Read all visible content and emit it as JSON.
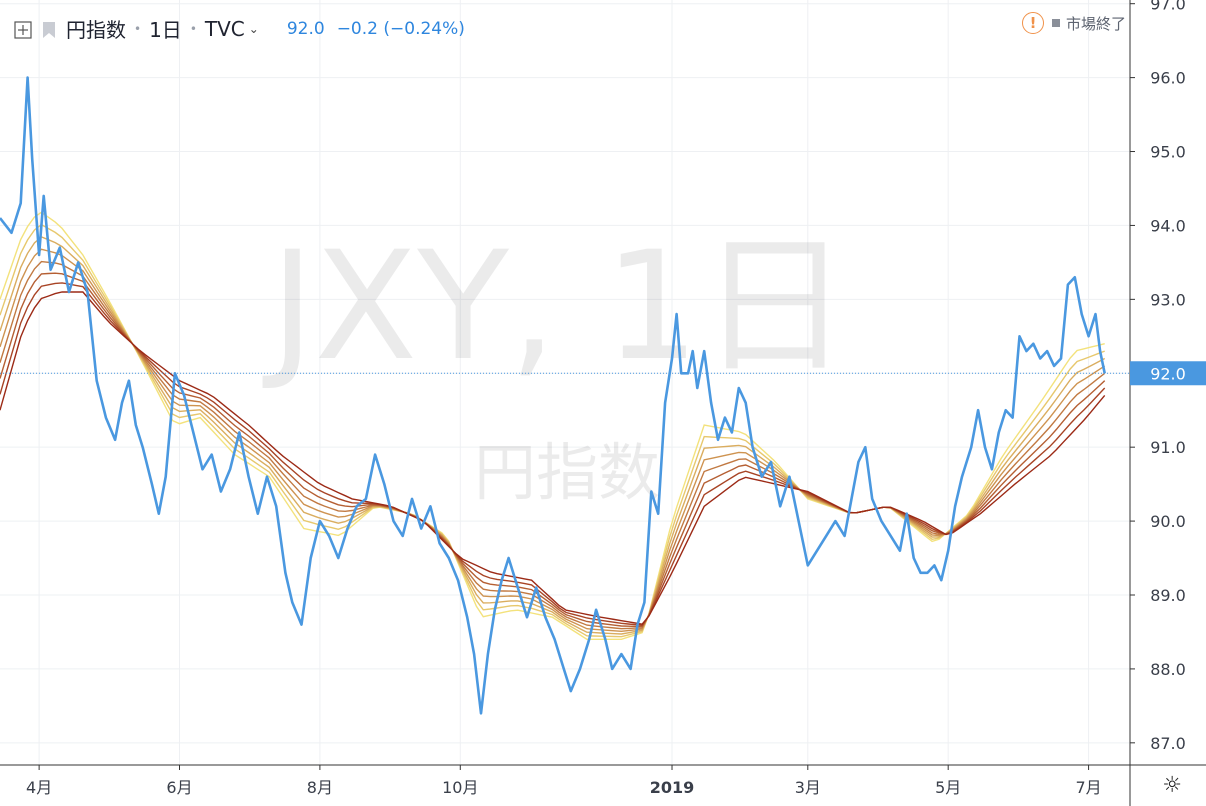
{
  "header": {
    "name": "円指数",
    "interval": "1日",
    "source": "TVC",
    "price": "92.0",
    "change": "−0.2 (−0.24%)"
  },
  "status": {
    "text": "市場終了"
  },
  "watermark": {
    "main": "JXY, 1日",
    "sub": "円指数"
  },
  "current_price_label": "92.0",
  "icons": {
    "add": "plus-square-icon",
    "flag": "flag-icon",
    "market": "warning-icon",
    "settings": "sun-icon"
  },
  "colors": {
    "price_line": "#4a98e0",
    "ribbon_fast": "#f3e27c",
    "ribbon_slow": "#9c2a16",
    "current_line": "#4a98e0"
  },
  "chart_data": {
    "type": "line",
    "title": "",
    "xlabel": "",
    "ylabel": "",
    "x_start": "2018-03-15",
    "x_end": "2019-07-19",
    "ylim": [
      86.7,
      97.05
    ],
    "y_ticks": [
      "87.0",
      "88.0",
      "89.0",
      "90.0",
      "91.0",
      "92.0",
      "93.0",
      "94.0",
      "95.0",
      "96.0",
      "97.0"
    ],
    "x_ticks": [
      {
        "label": "4月",
        "date": "2018-04-01"
      },
      {
        "label": "6月",
        "date": "2018-06-01"
      },
      {
        "label": "8月",
        "date": "2018-08-01"
      },
      {
        "label": "10月",
        "date": "2018-10-01"
      },
      {
        "label": "2019",
        "date": "2019-01-01"
      },
      {
        "label": "3月",
        "date": "2019-03-01"
      },
      {
        "label": "5月",
        "date": "2019-05-01"
      },
      {
        "label": "7月",
        "date": "2019-07-01"
      }
    ],
    "grid": true,
    "current_value": 92.0,
    "series": [
      {
        "kind": "price",
        "points": [
          [
            "2018-03-15",
            94.1
          ],
          [
            "2018-03-20",
            93.9
          ],
          [
            "2018-03-24",
            94.3
          ],
          [
            "2018-03-27",
            96.0
          ],
          [
            "2018-03-29",
            94.9
          ],
          [
            "2018-04-01",
            93.6
          ],
          [
            "2018-04-03",
            94.4
          ],
          [
            "2018-04-06",
            93.4
          ],
          [
            "2018-04-10",
            93.7
          ],
          [
            "2018-04-14",
            93.1
          ],
          [
            "2018-04-18",
            93.5
          ],
          [
            "2018-04-22",
            93.1
          ],
          [
            "2018-04-26",
            91.9
          ],
          [
            "2018-04-30",
            91.4
          ],
          [
            "2018-05-04",
            91.1
          ],
          [
            "2018-05-07",
            91.6
          ],
          [
            "2018-05-10",
            91.9
          ],
          [
            "2018-05-13",
            91.3
          ],
          [
            "2018-05-16",
            91.0
          ],
          [
            "2018-05-20",
            90.5
          ],
          [
            "2018-05-23",
            90.1
          ],
          [
            "2018-05-26",
            90.6
          ],
          [
            "2018-05-30",
            92.0
          ],
          [
            "2018-06-03",
            91.7
          ],
          [
            "2018-06-07",
            91.2
          ],
          [
            "2018-06-11",
            90.7
          ],
          [
            "2018-06-15",
            90.9
          ],
          [
            "2018-06-19",
            90.4
          ],
          [
            "2018-06-23",
            90.7
          ],
          [
            "2018-06-27",
            91.2
          ],
          [
            "2018-07-01",
            90.6
          ],
          [
            "2018-07-05",
            90.1
          ],
          [
            "2018-07-09",
            90.6
          ],
          [
            "2018-07-13",
            90.2
          ],
          [
            "2018-07-17",
            89.3
          ],
          [
            "2018-07-20",
            88.9
          ],
          [
            "2018-07-24",
            88.6
          ],
          [
            "2018-07-28",
            89.5
          ],
          [
            "2018-08-01",
            90.0
          ],
          [
            "2018-08-05",
            89.8
          ],
          [
            "2018-08-09",
            89.5
          ],
          [
            "2018-08-13",
            89.9
          ],
          [
            "2018-08-17",
            90.2
          ],
          [
            "2018-08-21",
            90.3
          ],
          [
            "2018-08-25",
            90.9
          ],
          [
            "2018-08-29",
            90.5
          ],
          [
            "2018-09-02",
            90.0
          ],
          [
            "2018-09-06",
            89.8
          ],
          [
            "2018-09-10",
            90.3
          ],
          [
            "2018-09-14",
            89.9
          ],
          [
            "2018-09-18",
            90.2
          ],
          [
            "2018-09-22",
            89.7
          ],
          [
            "2018-09-26",
            89.5
          ],
          [
            "2018-09-30",
            89.2
          ],
          [
            "2018-10-04",
            88.7
          ],
          [
            "2018-10-07",
            88.2
          ],
          [
            "2018-10-10",
            87.4
          ],
          [
            "2018-10-13",
            88.2
          ],
          [
            "2018-10-16",
            88.8
          ],
          [
            "2018-10-19",
            89.2
          ],
          [
            "2018-10-22",
            89.5
          ],
          [
            "2018-10-26",
            89.1
          ],
          [
            "2018-10-30",
            88.7
          ],
          [
            "2018-11-03",
            89.1
          ],
          [
            "2018-11-07",
            88.7
          ],
          [
            "2018-11-11",
            88.4
          ],
          [
            "2018-11-15",
            88.0
          ],
          [
            "2018-11-18",
            87.7
          ],
          [
            "2018-11-22",
            88.0
          ],
          [
            "2018-11-26",
            88.4
          ],
          [
            "2018-11-29",
            88.8
          ],
          [
            "2018-12-03",
            88.4
          ],
          [
            "2018-12-06",
            88.0
          ],
          [
            "2018-12-10",
            88.2
          ],
          [
            "2018-12-14",
            88.0
          ],
          [
            "2018-12-17",
            88.6
          ],
          [
            "2018-12-20",
            88.9
          ],
          [
            "2018-12-23",
            90.4
          ],
          [
            "2018-12-26",
            90.1
          ],
          [
            "2018-12-29",
            91.6
          ],
          [
            "2019-01-01",
            92.2
          ],
          [
            "2019-01-03",
            92.8
          ],
          [
            "2019-01-05",
            92.0
          ],
          [
            "2019-01-08",
            92.0
          ],
          [
            "2019-01-10",
            92.3
          ],
          [
            "2019-01-12",
            91.8
          ],
          [
            "2019-01-15",
            92.3
          ],
          [
            "2019-01-18",
            91.6
          ],
          [
            "2019-01-21",
            91.1
          ],
          [
            "2019-01-24",
            91.4
          ],
          [
            "2019-01-27",
            91.2
          ],
          [
            "2019-01-30",
            91.8
          ],
          [
            "2019-02-02",
            91.6
          ],
          [
            "2019-02-05",
            91.0
          ],
          [
            "2019-02-09",
            90.6
          ],
          [
            "2019-02-13",
            90.8
          ],
          [
            "2019-02-17",
            90.2
          ],
          [
            "2019-02-21",
            90.6
          ],
          [
            "2019-02-25",
            90.0
          ],
          [
            "2019-03-01",
            89.4
          ],
          [
            "2019-03-05",
            89.6
          ],
          [
            "2019-03-09",
            89.8
          ],
          [
            "2019-03-13",
            90.0
          ],
          [
            "2019-03-17",
            89.8
          ],
          [
            "2019-03-20",
            90.3
          ],
          [
            "2019-03-23",
            90.8
          ],
          [
            "2019-03-26",
            91.0
          ],
          [
            "2019-03-29",
            90.3
          ],
          [
            "2019-04-02",
            90.0
          ],
          [
            "2019-04-06",
            89.8
          ],
          [
            "2019-04-10",
            89.6
          ],
          [
            "2019-04-13",
            90.1
          ],
          [
            "2019-04-16",
            89.5
          ],
          [
            "2019-04-19",
            89.3
          ],
          [
            "2019-04-22",
            89.3
          ],
          [
            "2019-04-25",
            89.4
          ],
          [
            "2019-04-28",
            89.2
          ],
          [
            "2019-05-01",
            89.6
          ],
          [
            "2019-05-04",
            90.2
          ],
          [
            "2019-05-07",
            90.6
          ],
          [
            "2019-05-11",
            91.0
          ],
          [
            "2019-05-14",
            91.5
          ],
          [
            "2019-05-17",
            91.0
          ],
          [
            "2019-05-20",
            90.7
          ],
          [
            "2019-05-23",
            91.2
          ],
          [
            "2019-05-26",
            91.5
          ],
          [
            "2019-05-29",
            91.4
          ],
          [
            "2019-06-01",
            92.5
          ],
          [
            "2019-06-04",
            92.3
          ],
          [
            "2019-06-07",
            92.4
          ],
          [
            "2019-06-10",
            92.2
          ],
          [
            "2019-06-13",
            92.3
          ],
          [
            "2019-06-16",
            92.1
          ],
          [
            "2019-06-19",
            92.2
          ],
          [
            "2019-06-22",
            93.2
          ],
          [
            "2019-06-25",
            93.3
          ],
          [
            "2019-06-28",
            92.8
          ],
          [
            "2019-07-01",
            92.5
          ],
          [
            "2019-07-04",
            92.8
          ],
          [
            "2019-07-06",
            92.3
          ],
          [
            "2019-07-08",
            92.0
          ]
        ]
      },
      {
        "kind": "ribbon-fast",
        "points": [
          [
            "2018-03-15",
            93.0
          ],
          [
            "2018-03-25",
            93.9
          ],
          [
            "2018-04-01",
            94.2
          ],
          [
            "2018-04-10",
            94.0
          ],
          [
            "2018-04-20",
            93.6
          ],
          [
            "2018-05-01",
            93.0
          ],
          [
            "2018-05-15",
            92.2
          ],
          [
            "2018-05-30",
            91.3
          ],
          [
            "2018-06-10",
            91.4
          ],
          [
            "2018-06-25",
            90.9
          ],
          [
            "2018-07-10",
            90.6
          ],
          [
            "2018-07-25",
            89.9
          ],
          [
            "2018-08-10",
            89.8
          ],
          [
            "2018-08-25",
            90.2
          ],
          [
            "2018-09-10",
            90.1
          ],
          [
            "2018-09-25",
            89.8
          ],
          [
            "2018-10-10",
            88.7
          ],
          [
            "2018-10-25",
            88.8
          ],
          [
            "2018-11-10",
            88.7
          ],
          [
            "2018-11-25",
            88.4
          ],
          [
            "2018-12-10",
            88.4
          ],
          [
            "2018-12-20",
            88.5
          ],
          [
            "2019-01-01",
            90.0
          ],
          [
            "2019-01-15",
            91.3
          ],
          [
            "2019-02-01",
            91.2
          ],
          [
            "2019-02-15",
            90.8
          ],
          [
            "2019-03-01",
            90.3
          ],
          [
            "2019-03-20",
            90.1
          ],
          [
            "2019-04-05",
            90.2
          ],
          [
            "2019-04-25",
            89.7
          ],
          [
            "2019-05-10",
            90.1
          ],
          [
            "2019-05-25",
            90.9
          ],
          [
            "2019-06-10",
            91.6
          ],
          [
            "2019-06-25",
            92.3
          ],
          [
            "2019-07-08",
            92.4
          ]
        ]
      },
      {
        "kind": "ribbon-slow",
        "points": [
          [
            "2018-03-15",
            91.5
          ],
          [
            "2018-03-25",
            92.6
          ],
          [
            "2018-04-01",
            93.0
          ],
          [
            "2018-04-10",
            93.1
          ],
          [
            "2018-04-20",
            93.1
          ],
          [
            "2018-05-01",
            92.7
          ],
          [
            "2018-05-15",
            92.3
          ],
          [
            "2018-06-01",
            91.9
          ],
          [
            "2018-06-15",
            91.7
          ],
          [
            "2018-07-01",
            91.3
          ],
          [
            "2018-07-15",
            90.9
          ],
          [
            "2018-08-01",
            90.5
          ],
          [
            "2018-08-15",
            90.3
          ],
          [
            "2018-09-01",
            90.2
          ],
          [
            "2018-09-15",
            90.0
          ],
          [
            "2018-10-01",
            89.5
          ],
          [
            "2018-10-15",
            89.3
          ],
          [
            "2018-11-01",
            89.2
          ],
          [
            "2018-11-15",
            88.8
          ],
          [
            "2018-12-01",
            88.7
          ],
          [
            "2018-12-20",
            88.6
          ],
          [
            "2019-01-01",
            89.3
          ],
          [
            "2019-01-15",
            90.2
          ],
          [
            "2019-02-01",
            90.6
          ],
          [
            "2019-02-15",
            90.5
          ],
          [
            "2019-03-01",
            90.4
          ],
          [
            "2019-03-20",
            90.1
          ],
          [
            "2019-04-05",
            90.2
          ],
          [
            "2019-04-20",
            90.0
          ],
          [
            "2019-05-01",
            89.8
          ],
          [
            "2019-05-15",
            90.1
          ],
          [
            "2019-05-30",
            90.5
          ],
          [
            "2019-06-15",
            90.9
          ],
          [
            "2019-06-30",
            91.4
          ],
          [
            "2019-07-08",
            91.7
          ]
        ]
      }
    ]
  }
}
